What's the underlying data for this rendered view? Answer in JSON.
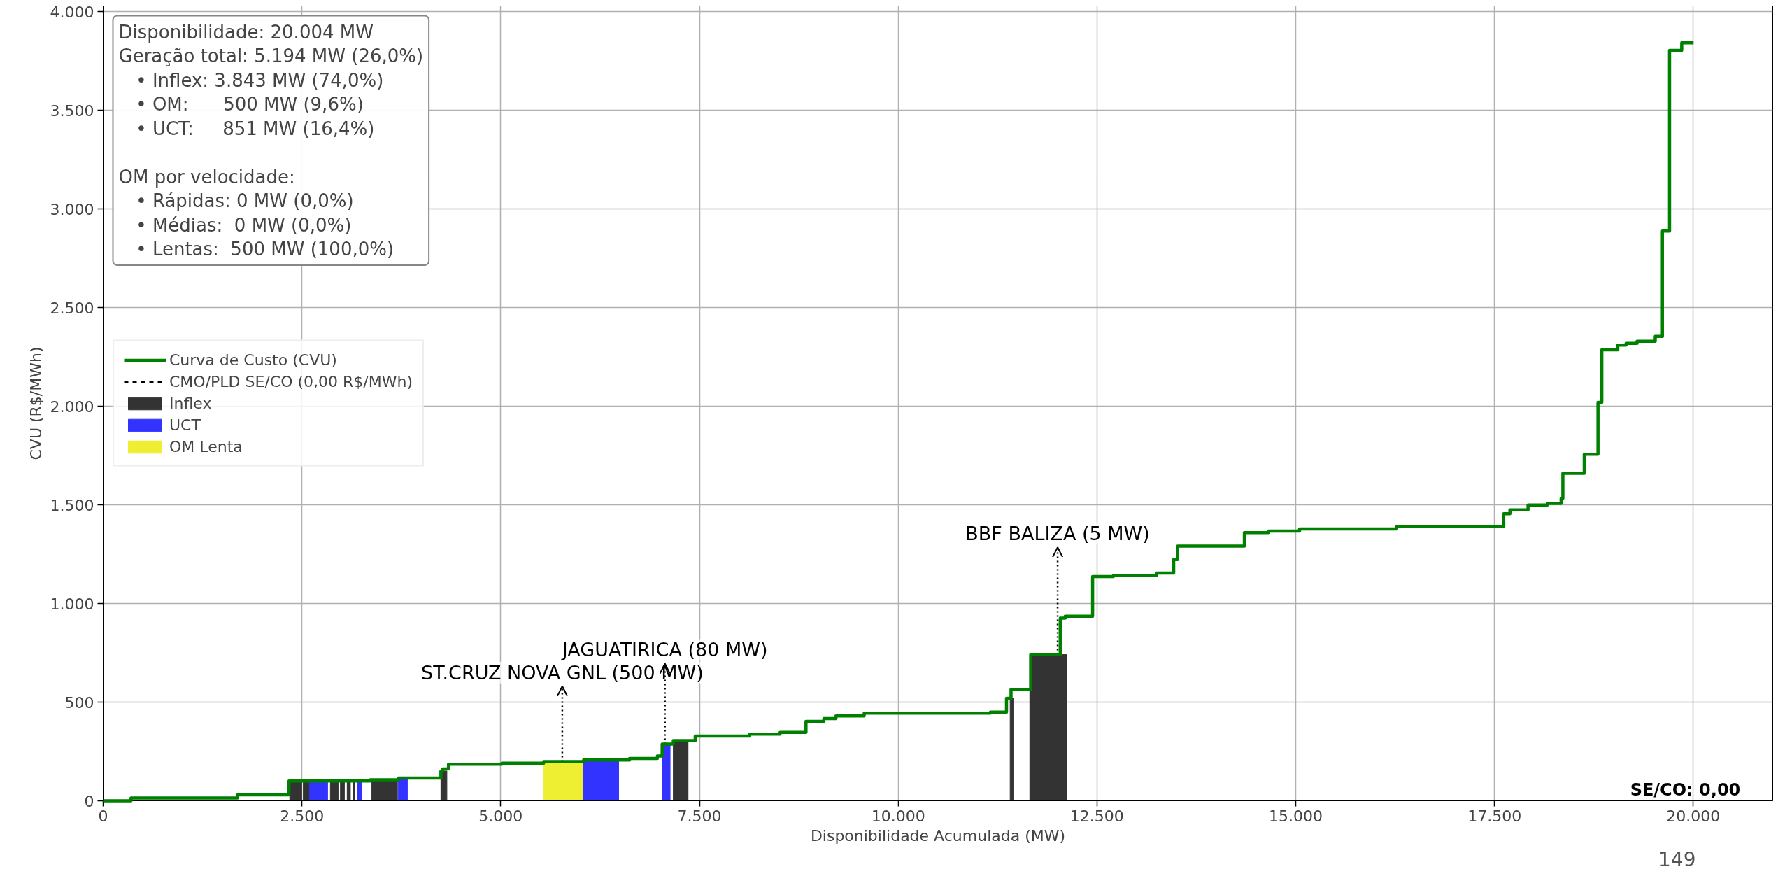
{
  "chart_data": {
    "type": "step",
    "xlabel": "Disponibilidade Acumulada (MW)",
    "ylabel": "CVU (R$/MWh)",
    "xlim": [
      0,
      21000
    ],
    "ylim": [
      0,
      4030
    ],
    "xticks": [
      0,
      {
        "value": 2500,
        "label": "2.500"
      },
      {
        "value": 5000,
        "label": "5.000"
      },
      {
        "value": 7500,
        "label": "7.500"
      },
      {
        "value": 10000,
        "label": "10.000"
      },
      {
        "value": 12500,
        "label": "12.500"
      },
      {
        "value": 15000,
        "label": "15.000"
      },
      {
        "value": 17500,
        "label": "17.500"
      },
      {
        "value": 20000,
        "label": "20.000"
      }
    ],
    "yticks": [
      0,
      500,
      {
        "value": 1000,
        "label": "1.000"
      },
      {
        "value": 1500,
        "label": "1.500"
      },
      {
        "value": 2000,
        "label": "2.000"
      },
      {
        "value": 2500,
        "label": "2.500"
      },
      {
        "value": 3000,
        "label": "3.000"
      },
      {
        "value": 3500,
        "label": "3.500"
      },
      {
        "value": 4000,
        "label": "4.000"
      }
    ],
    "grid": true,
    "legend": "left",
    "series": [
      {
        "name": "Curva de Custo (CVU)",
        "color": "#008000",
        "x": [
          0,
          350,
          1690,
          2337,
          3360,
          3711,
          4248,
          4270,
          4343,
          5015,
          5541,
          6043,
          6620,
          6971,
          7031,
          7171,
          7447,
          8131,
          8514,
          8840,
          9065,
          9217,
          9572,
          11160,
          11362,
          11419,
          11667,
          12038,
          12100,
          12445,
          12706,
          13249,
          13465,
          13515,
          14354,
          14656,
          15048,
          16269,
          17616,
          17694,
          17922,
          18165,
          18338,
          18360,
          18629,
          18802,
          18850,
          19051,
          19155,
          19293,
          19522,
          19612,
          19702,
          19855,
          20004
        ],
        "values": [
          0,
          14,
          30,
          100,
          106,
          115,
          151,
          161,
          185,
          191,
          199,
          207,
          215,
          227,
          287,
          305,
          328,
          338,
          347,
          403,
          417,
          430,
          444,
          450,
          520,
          565,
          741,
          926,
          936,
          1137,
          1141,
          1155,
          1223,
          1291,
          1360,
          1368,
          1378,
          1390,
          1455,
          1475,
          1500,
          1508,
          1533,
          1660,
          1757,
          2020,
          2286,
          2310,
          2319,
          2330,
          2355,
          2889,
          3805,
          3843,
          3843
        ]
      },
      {
        "type": "line",
        "name": "CMO/PLD SE/CO (0,00 R$/MWh)",
        "color": "#000000",
        "line_style": "dashed",
        "x": [
          0,
          21000
        ],
        "values": [
          0,
          0
        ]
      },
      {
        "type": "histogram",
        "name": "Inflex",
        "color": "#333333",
        "bins": [
          2347,
          2497,
          2517,
          2597,
          2858,
          2959,
          2984,
          3034,
          3069,
          3109,
          3144,
          3164,
          3375,
          3701,
          4248,
          4323,
          7171,
          7357,
          11408,
          11447,
          11655,
          12123
        ],
        "values": [
          100,
          null,
          100,
          null,
          100,
          null,
          100,
          null,
          100,
          null,
          100,
          null,
          106,
          null,
          151,
          null,
          305,
          null,
          520,
          null,
          741
        ]
      },
      {
        "type": "histogram",
        "name": "UCT",
        "color": "#3333ff",
        "bins": [
          2597,
          2823,
          3194,
          3254,
          3711,
          3826,
          6033,
          6484,
          7031,
          7131
        ],
        "values": [
          100,
          null,
          100,
          null,
          115,
          null,
          207,
          null,
          287
        ]
      },
      {
        "type": "histogram",
        "name": "OM Lenta",
        "color": "#eeee33",
        "bins": [
          5541,
          6033
        ],
        "values": [
          199
        ]
      }
    ],
    "annotations": [
      "Disponibilidade: 20.004 MW\nGeração total: 5.194 MW (26,0%)\n   • Inflex: 3.843 MW (74,0%)\n   • OM:      500 MW (9,6%)\n   • UCT:     851 MW (16,4%)\n\nOM por velocidade:\n   • Rápidas: 0 MW (0,0%)\n   • Médias:  0 MW (0,0%)\n   • Lentas:  500 MW (100,0%)",
      {
        "text": "ST.CRUZ NOVA GNL (500 MW)",
        "x": 5775,
        "y": 199
      },
      {
        "text": "JAGUATIRICA (80 MW)",
        "x": 7066,
        "y": 287
      },
      {
        "text": "BBF BALIZA (5 MW)",
        "x": 12005,
        "y": 741
      },
      {
        "text": "SE/CO: 0,00",
        "x": 19900,
        "y": 0
      },
      "149"
    ]
  }
}
